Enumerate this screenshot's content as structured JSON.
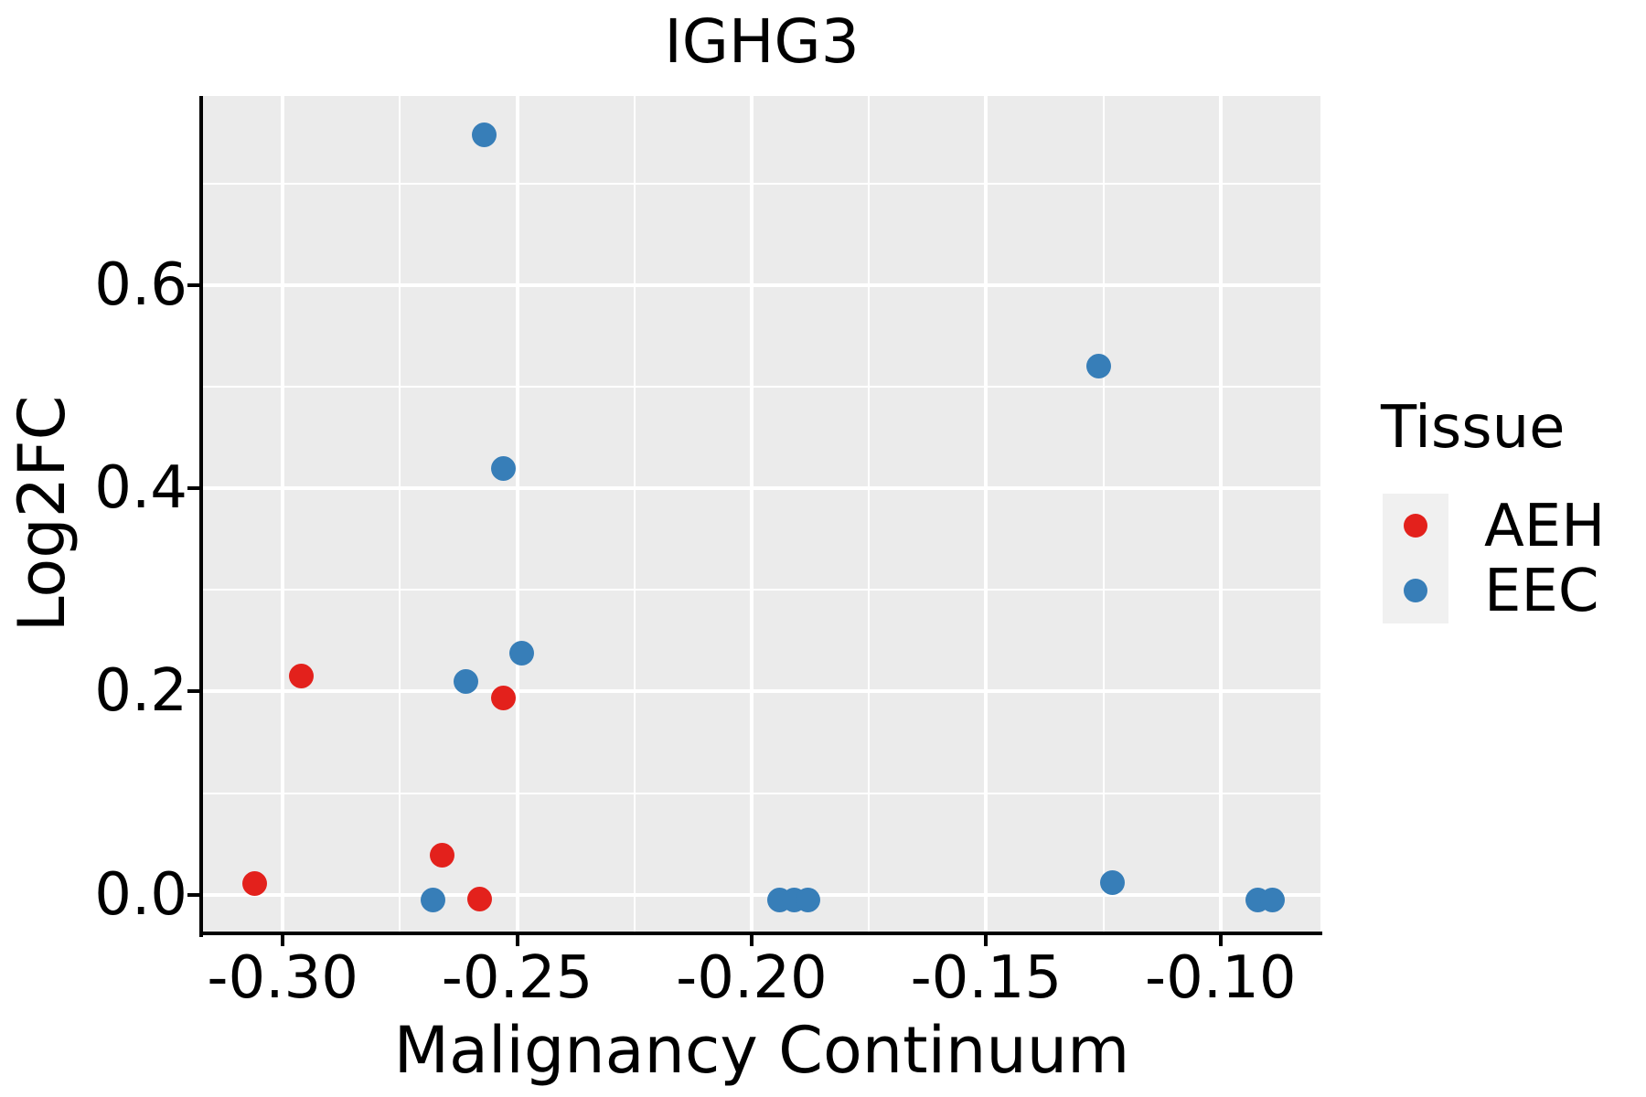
{
  "chart_data": {
    "type": "scatter",
    "title": "IGHG3",
    "xlabel": "Malignancy Continuum",
    "ylabel": "Log2FC",
    "grid": true,
    "legend_position": "right",
    "panel_background": "#EBEBEB",
    "gridline_color": "#FFFFFF",
    "xlim": [
      -0.317,
      -0.0787
    ],
    "ylim": [
      -0.038,
      0.786
    ],
    "x_ticks": [
      {
        "value": -0.3,
        "label": "-0.30"
      },
      {
        "value": -0.25,
        "label": "-0.25"
      },
      {
        "value": -0.2,
        "label": "-0.20"
      },
      {
        "value": -0.15,
        "label": "-0.15"
      },
      {
        "value": -0.1,
        "label": "-0.10"
      }
    ],
    "y_ticks": [
      {
        "value": 0.0,
        "label": "0.0"
      },
      {
        "value": 0.2,
        "label": "0.2"
      },
      {
        "value": 0.4,
        "label": "0.4"
      },
      {
        "value": 0.6,
        "label": "0.6"
      }
    ],
    "x_minor_ticks": [
      -0.275,
      -0.225,
      -0.175,
      -0.125
    ],
    "y_minor_ticks": [
      0.1,
      0.3,
      0.5,
      0.7
    ],
    "series": [
      {
        "name": "AEH",
        "color": "#E3211C",
        "points": [
          [
            -0.306,
            0.011
          ],
          [
            -0.296,
            0.215
          ],
          [
            -0.266,
            0.039
          ],
          [
            -0.258,
            -0.004
          ],
          [
            -0.253,
            0.194
          ]
        ]
      },
      {
        "name": "EEC",
        "color": "#377EB8",
        "points": [
          [
            -0.268,
            -0.005
          ],
          [
            -0.261,
            0.21
          ],
          [
            -0.257,
            0.748
          ],
          [
            -0.253,
            0.419
          ],
          [
            -0.249,
            0.238
          ],
          [
            -0.194,
            -0.005
          ],
          [
            -0.191,
            -0.005
          ],
          [
            -0.188,
            -0.005
          ],
          [
            -0.126,
            0.52
          ],
          [
            -0.123,
            0.012
          ],
          [
            -0.092,
            -0.005
          ],
          [
            -0.089,
            -0.005
          ]
        ]
      }
    ]
  },
  "legend": {
    "title": "Tissue",
    "items": [
      {
        "label": "AEH",
        "color": "#E3211C"
      },
      {
        "label": "EEC",
        "color": "#377EB8"
      }
    ]
  }
}
